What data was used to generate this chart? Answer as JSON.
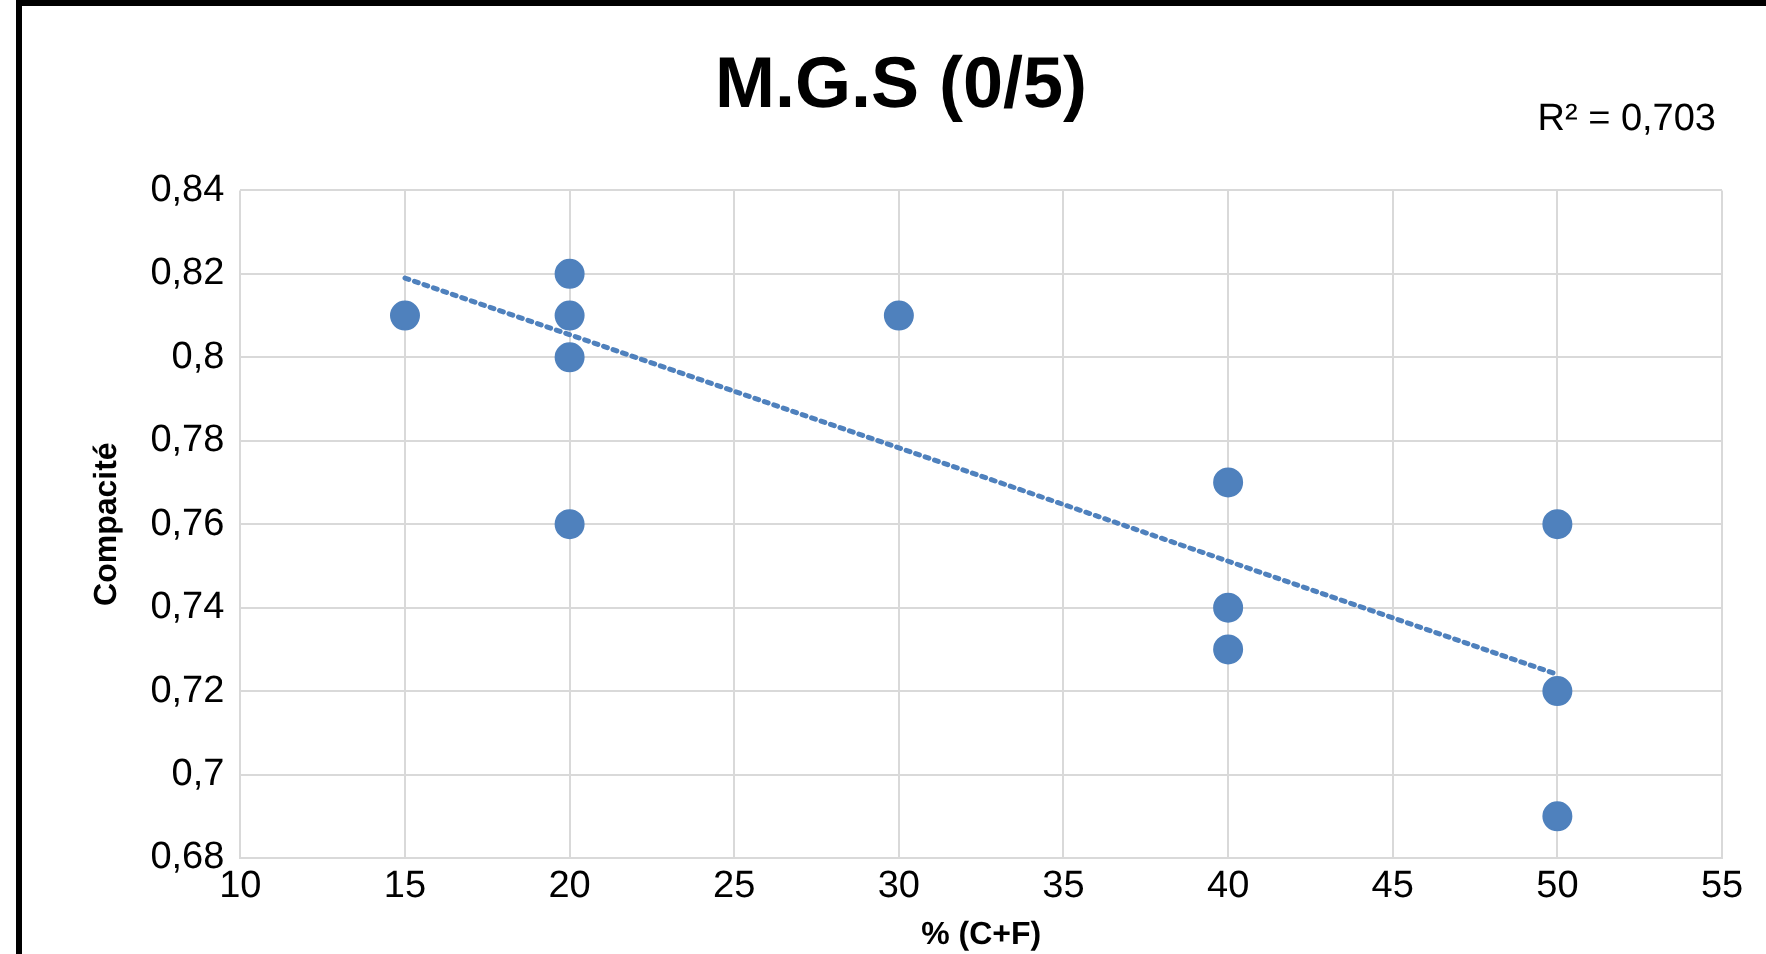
{
  "chart_data": {
    "type": "scatter",
    "title": "M.G.S (0/5)",
    "xlabel": "% (C+F)",
    "ylabel": "Compacité",
    "annotations": [
      "R² = 0,703"
    ],
    "series": [
      {
        "type": "scatter",
        "color": "#4f81bd",
        "marker": "circle",
        "x": [
          15,
          20,
          20,
          20,
          20,
          30,
          40,
          40,
          40,
          50,
          50,
          50
        ],
        "values": [
          0.81,
          0.82,
          0.81,
          0.8,
          0.76,
          0.81,
          0.77,
          0.74,
          0.73,
          0.76,
          0.72,
          0.69
        ]
      },
      {
        "type": "line",
        "color": "#4f81bd",
        "marker": "none",
        "line_style": "dotted",
        "x": [
          15,
          50
        ],
        "values": [
          0.819,
          0.724
        ]
      }
    ],
    "xlim": [
      10,
      55
    ],
    "xticks": [
      10,
      15,
      20,
      25,
      30,
      35,
      40,
      45,
      50,
      55
    ],
    "ylim": [
      0.68,
      0.84
    ],
    "yticks": [
      {
        "value": 0.68,
        "label": "0,68"
      },
      {
        "value": 0.7,
        "label": "0,7"
      },
      {
        "value": 0.72,
        "label": "0,72"
      },
      {
        "value": 0.74,
        "label": "0,74"
      },
      {
        "value": 0.76,
        "label": "0,76"
      },
      {
        "value": 0.78,
        "label": "0,78"
      },
      {
        "value": 0.8,
        "label": "0,8"
      },
      {
        "value": 0.82,
        "label": "0,82"
      },
      {
        "value": 0.84,
        "label": "0,84"
      }
    ],
    "grid": true,
    "legend": false
  }
}
